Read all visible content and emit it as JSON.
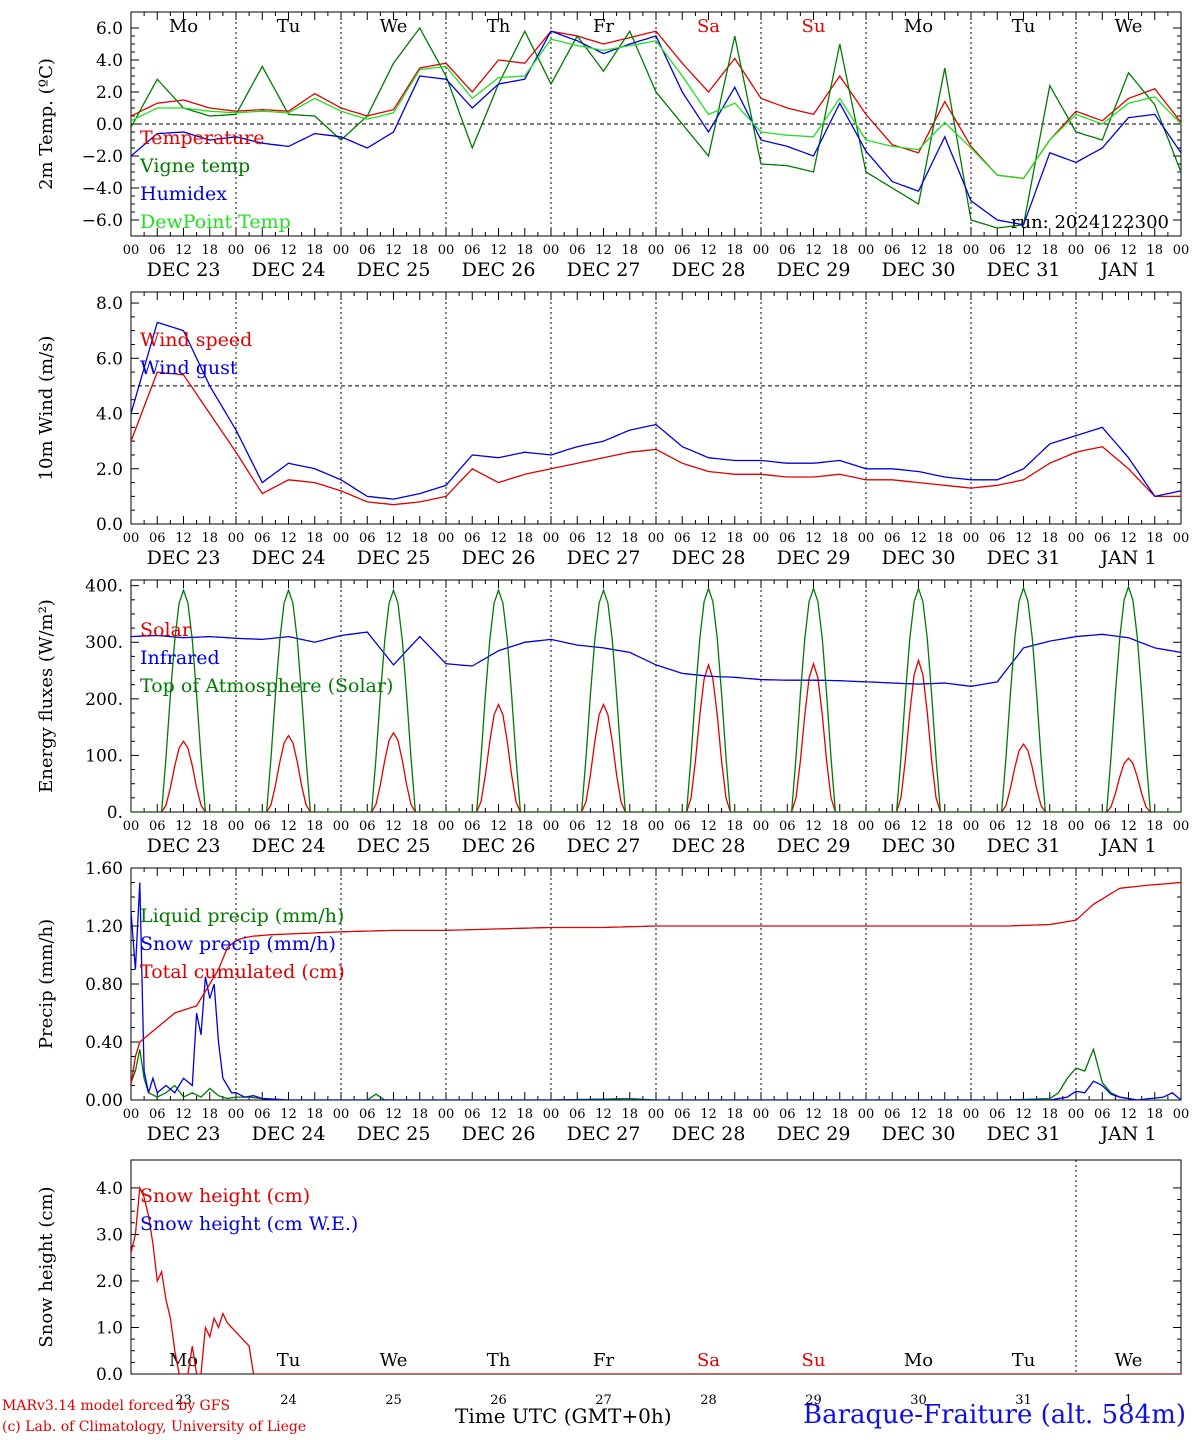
{
  "colors": {
    "red": "#e00000",
    "green": "#007a00",
    "blue": "#0000e0",
    "lightgreen": "#20e020",
    "black": "#000000"
  },
  "footer": {
    "credit_line1": "MARv3.14 model forced by GFS",
    "credit_line2": "(c) Lab. of Climatology, University of Liege",
    "xlabel": "Time UTC (GMT+0h)",
    "station": "Baraque-Fraiture (alt. 584m)"
  },
  "chart_data": [
    {
      "type": "line",
      "ylabel": "2m Temp. (ºC)",
      "ylim": [
        -7,
        7
      ],
      "yticks": [
        -6,
        -4,
        -2,
        0,
        2,
        4,
        6
      ],
      "yticklabels": [
        "−6.0",
        "−4.0",
        "−2.0",
        "0.0",
        "2.0",
        "4.0",
        "6.0"
      ],
      "day_labels": [
        "Mo",
        "Tu",
        "We",
        "Th",
        "Fr",
        "Sa",
        "Su",
        "Mo",
        "Tu",
        "We"
      ],
      "date_labels": [
        "DEC 23",
        "DEC 24",
        "DEC 25",
        "DEC 26",
        "DEC 27",
        "DEC 28",
        "DEC 29",
        "DEC 30",
        "DEC 31",
        "JAN  1"
      ],
      "hour_labels": [
        "00",
        "06",
        "12",
        "18"
      ],
      "run": "run: 2024122300",
      "hlines": [
        0
      ],
      "x": [
        0,
        6,
        12,
        18,
        24,
        30,
        36,
        42,
        48,
        54,
        60,
        66,
        72,
        78,
        84,
        90,
        96,
        102,
        108,
        114,
        120,
        126,
        132,
        138,
        144,
        150,
        156,
        162,
        168,
        174,
        180,
        186,
        192,
        198,
        204,
        210,
        216,
        222,
        228,
        234,
        240
      ],
      "series": [
        {
          "name": "Temperature",
          "color": "red",
          "values": [
            0.5,
            1.3,
            1.5,
            1.0,
            0.8,
            0.9,
            0.8,
            1.9,
            1.0,
            0.5,
            0.9,
            3.5,
            3.8,
            2.0,
            4.0,
            3.8,
            5.8,
            5.5,
            5.0,
            5.4,
            5.8,
            3.8,
            2.0,
            4.1,
            1.6,
            1.0,
            0.6,
            3.0,
            0.6,
            -1.3,
            -1.8,
            1.4,
            -1.4,
            -3.2,
            -3.4,
            -1.0,
            0.8,
            0.2,
            1.6,
            2.2,
            0.1
          ]
        },
        {
          "name": "Vigne temp",
          "color": "green",
          "values": [
            -0.2,
            2.8,
            1.0,
            0.5,
            0.6,
            3.6,
            0.6,
            0.5,
            -1.0,
            0.5,
            3.8,
            6.0,
            3.0,
            -1.5,
            2.5,
            5.8,
            2.5,
            5.5,
            3.3,
            5.8,
            2.0,
            0.0,
            -2.0,
            5.5,
            -2.5,
            -2.6,
            -3.0,
            5.0,
            -3.0,
            -4.0,
            -5.0,
            3.5,
            -6.0,
            -6.5,
            -6.3,
            2.4,
            -0.5,
            -1.0,
            3.2,
            1.2,
            -3.0
          ]
        },
        {
          "name": "Humidex",
          "color": "blue",
          "values": [
            -2.0,
            -0.6,
            -0.5,
            -1.0,
            -0.8,
            -1.2,
            -1.4,
            -0.6,
            -0.8,
            -1.5,
            -0.5,
            3.0,
            2.8,
            1.0,
            2.5,
            2.8,
            5.8,
            5.2,
            4.4,
            5.0,
            5.5,
            2.0,
            -0.5,
            2.3,
            -1.0,
            -1.4,
            -2.0,
            1.3,
            -1.7,
            -3.6,
            -4.2,
            -0.8,
            -4.8,
            -6.0,
            -6.3,
            -1.8,
            -2.4,
            -1.5,
            0.4,
            0.6,
            -1.8
          ]
        },
        {
          "name": "DewPoint Temp",
          "color": "lightgreen",
          "values": [
            0.2,
            1.0,
            1.0,
            0.8,
            0.7,
            0.8,
            0.7,
            1.6,
            0.8,
            0.3,
            0.7,
            3.4,
            3.6,
            1.6,
            2.9,
            3.0,
            5.3,
            4.9,
            4.6,
            4.9,
            5.2,
            3.0,
            0.6,
            1.3,
            -0.5,
            -0.7,
            -0.8,
            1.6,
            -1.0,
            -1.4,
            -1.6,
            0.1,
            -1.5,
            -3.2,
            -3.4,
            -1.0,
            0.6,
            0.0,
            1.3,
            1.7,
            0.0
          ]
        }
      ]
    },
    {
      "type": "line",
      "ylabel": "10m Wind (m/s)",
      "ylim": [
        0,
        8.4
      ],
      "yticks": [
        0,
        2,
        4,
        6,
        8
      ],
      "yticklabels": [
        "0.0",
        "2.0",
        "4.0",
        "6.0",
        "8.0"
      ],
      "date_labels": [
        "DEC 23",
        "DEC 24",
        "DEC 25",
        "DEC 26",
        "DEC 27",
        "DEC 28",
        "DEC 29",
        "DEC 30",
        "DEC 31",
        "JAN  1"
      ],
      "hour_labels": [
        "00",
        "06",
        "12",
        "18"
      ],
      "hlines": [
        5
      ],
      "x": [
        0,
        6,
        12,
        18,
        24,
        30,
        36,
        42,
        48,
        54,
        60,
        66,
        72,
        78,
        84,
        90,
        96,
        102,
        108,
        114,
        120,
        126,
        132,
        138,
        144,
        150,
        156,
        162,
        168,
        174,
        180,
        186,
        192,
        198,
        204,
        210,
        216,
        222,
        228,
        234,
        240
      ],
      "series": [
        {
          "name": "Wind speed",
          "color": "red",
          "values": [
            3.0,
            5.5,
            5.4,
            4.0,
            2.6,
            1.1,
            1.6,
            1.5,
            1.2,
            0.8,
            0.7,
            0.8,
            1.0,
            2.0,
            1.5,
            1.8,
            2.0,
            2.2,
            2.4,
            2.6,
            2.7,
            2.2,
            1.9,
            1.8,
            1.8,
            1.7,
            1.7,
            1.8,
            1.6,
            1.6,
            1.5,
            1.4,
            1.3,
            1.4,
            1.6,
            2.2,
            2.6,
            2.8,
            2.0,
            1.0,
            1.0
          ]
        },
        {
          "name": "Wind gust",
          "color": "blue",
          "values": [
            4.0,
            7.3,
            7.0,
            5.0,
            3.4,
            1.5,
            2.2,
            2.0,
            1.6,
            1.0,
            0.9,
            1.1,
            1.4,
            2.5,
            2.4,
            2.6,
            2.5,
            2.8,
            3.0,
            3.4,
            3.6,
            2.8,
            2.4,
            2.3,
            2.3,
            2.2,
            2.2,
            2.3,
            2.0,
            2.0,
            1.9,
            1.7,
            1.6,
            1.6,
            2.0,
            2.9,
            3.2,
            3.5,
            2.4,
            1.0,
            1.2
          ]
        }
      ]
    },
    {
      "type": "line",
      "ylabel": "Energy fluxes (W/m²)",
      "ylim": [
        0,
        410
      ],
      "yticks": [
        0,
        100,
        200,
        300,
        400
      ],
      "yticklabels": [
        "0.",
        "100.",
        "200.",
        "300.",
        "400."
      ],
      "date_labels": [
        "DEC 23",
        "DEC 24",
        "DEC 25",
        "DEC 26",
        "DEC 27",
        "DEC 28",
        "DEC 29",
        "DEC 30",
        "DEC 31",
        "JAN  1"
      ],
      "hour_labels": [
        "00",
        "06",
        "12",
        "18"
      ],
      "peaks": {
        "day_start": [
          0,
          24,
          48,
          72,
          96,
          120,
          144,
          168,
          192,
          216
        ],
        "solar_max": [
          125,
          135,
          140,
          190,
          190,
          260,
          262,
          268,
          120,
          95
        ],
        "toa_max": [
          392,
          392,
          392,
          392,
          392,
          395,
          395,
          395,
          396,
          398
        ]
      },
      "series": [
        {
          "name": "Solar",
          "color": "red"
        },
        {
          "name": "Infrared",
          "color": "blue",
          "x": [
            0,
            6,
            12,
            18,
            24,
            30,
            36,
            42,
            48,
            54,
            60,
            66,
            72,
            78,
            84,
            90,
            96,
            102,
            108,
            114,
            120,
            126,
            132,
            138,
            144,
            150,
            156,
            162,
            168,
            174,
            180,
            186,
            192,
            198,
            204,
            210,
            216,
            222,
            228,
            234,
            240
          ],
          "values": [
            310,
            312,
            308,
            310,
            307,
            305,
            310,
            300,
            312,
            318,
            260,
            310,
            262,
            258,
            285,
            300,
            305,
            295,
            290,
            282,
            260,
            245,
            240,
            238,
            234,
            233,
            233,
            232,
            230,
            228,
            226,
            228,
            222,
            230,
            290,
            302,
            310,
            314,
            308,
            290,
            282
          ]
        },
        {
          "name": "Top of Atmosphere (Solar)",
          "color": "green"
        }
      ]
    },
    {
      "type": "line",
      "ylabel": "Precip (mm/h)",
      "ylim": [
        0,
        1.6
      ],
      "yticks": [
        0,
        0.4,
        0.8,
        1.2,
        1.6
      ],
      "yticklabels": [
        "0.00",
        "0.40",
        "0.80",
        "1.20",
        "1.60"
      ],
      "date_labels": [
        "DEC 23",
        "DEC 24",
        "DEC 25",
        "DEC 26",
        "DEC 27",
        "DEC 28",
        "DEC 29",
        "DEC 30",
        "DEC 31",
        "JAN  1"
      ],
      "hour_labels": [
        "00",
        "06",
        "12",
        "18"
      ],
      "series": [
        {
          "name": "Liquid precip (mm/h)",
          "color": "green",
          "x": [
            0,
            1,
            2,
            3,
            4,
            6,
            8,
            10,
            12,
            14,
            16,
            18,
            20,
            22,
            24,
            27,
            30,
            36,
            48,
            54,
            56,
            58,
            64,
            84,
            96,
            114,
            120,
            200,
            210,
            212,
            214,
            216,
            218,
            220,
            222,
            224,
            226,
            230,
            240
          ],
          "values": [
            0.12,
            0.2,
            0.35,
            0.15,
            0.05,
            0.02,
            0.05,
            0.1,
            0.02,
            0.05,
            0.02,
            0.08,
            0.03,
            0.01,
            0.02,
            0.02,
            0.01,
            0,
            0,
            0,
            0.04,
            0,
            0,
            0,
            0,
            0.01,
            0,
            0,
            0.01,
            0.05,
            0.15,
            0.22,
            0.2,
            0.35,
            0.12,
            0.05,
            0.02,
            0,
            0
          ]
        },
        {
          "name": "Snow precip (mm/h)",
          "color": "blue",
          "x": [
            0,
            1,
            2,
            3,
            4,
            5,
            6,
            8,
            10,
            12,
            14,
            15,
            16,
            17,
            18,
            19,
            20,
            21,
            22,
            23,
            24,
            26,
            28,
            30,
            36,
            48,
            120,
            210,
            214,
            216,
            218,
            220,
            222,
            224,
            226,
            230,
            236,
            238,
            240
          ],
          "values": [
            1.3,
            0.9,
            1.5,
            0.2,
            0.05,
            0.15,
            0.05,
            0.1,
            0.05,
            0.15,
            0.1,
            0.6,
            0.45,
            0.85,
            0.7,
            0.8,
            0.4,
            0.15,
            0.1,
            0.05,
            0.05,
            0.02,
            0.03,
            0.01,
            0,
            0,
            0,
            0,
            0.02,
            0.06,
            0.05,
            0.13,
            0.1,
            0.04,
            0.02,
            0,
            0.02,
            0.05,
            0
          ]
        },
        {
          "name": "Total cumulated (cm)",
          "color": "red",
          "x": [
            0,
            1,
            2,
            4,
            8,
            10,
            15,
            20,
            22,
            24,
            26,
            28,
            32,
            40,
            48,
            60,
            72,
            84,
            96,
            108,
            120,
            150,
            180,
            200,
            210,
            216,
            220,
            226,
            232,
            240
          ],
          "values": [
            0.1,
            0.3,
            0.4,
            0.45,
            0.55,
            0.6,
            0.65,
            0.9,
            1.05,
            1.1,
            1.12,
            1.13,
            1.14,
            1.15,
            1.16,
            1.17,
            1.17,
            1.18,
            1.19,
            1.19,
            1.2,
            1.2,
            1.2,
            1.2,
            1.21,
            1.24,
            1.35,
            1.46,
            1.48,
            1.5
          ]
        }
      ]
    },
    {
      "type": "line",
      "ylabel": "Snow height (cm)",
      "ylim": [
        0,
        4.6
      ],
      "yticks": [
        0,
        1,
        2,
        3,
        4
      ],
      "yticklabels": [
        "0.0",
        "1.0",
        "2.0",
        "3.0",
        "4.0"
      ],
      "day_labels": [
        "Mo",
        "Tu",
        "We",
        "Th",
        "Fr",
        "Sa",
        "Su",
        "Mo",
        "Tu",
        "We"
      ],
      "day_numbers": [
        "23",
        "24",
        "25",
        "26",
        "27",
        "28",
        "29",
        "30",
        "31",
        "1"
      ],
      "series": [
        {
          "name": "Snow height (cm)",
          "color": "red",
          "x": [
            0,
            1,
            2,
            3,
            4,
            5,
            6,
            7,
            8,
            9,
            10,
            11,
            12,
            13,
            14,
            15,
            16,
            17,
            18,
            19,
            20,
            21,
            22,
            23,
            24,
            25,
            26,
            27,
            28,
            30,
            240
          ],
          "values": [
            2.6,
            3.0,
            4.0,
            3.8,
            3.4,
            2.8,
            2.0,
            2.2,
            1.6,
            1.2,
            0.5,
            0.0,
            0.0,
            0.0,
            0.6,
            0.0,
            0.0,
            1.0,
            0.8,
            1.2,
            1.0,
            1.3,
            1.1,
            1.0,
            0.9,
            0.8,
            0.7,
            0.6,
            0.0,
            0.0,
            0.0
          ]
        },
        {
          "name": "Snow height (cm W.E.)",
          "color": "blue"
        }
      ]
    }
  ]
}
